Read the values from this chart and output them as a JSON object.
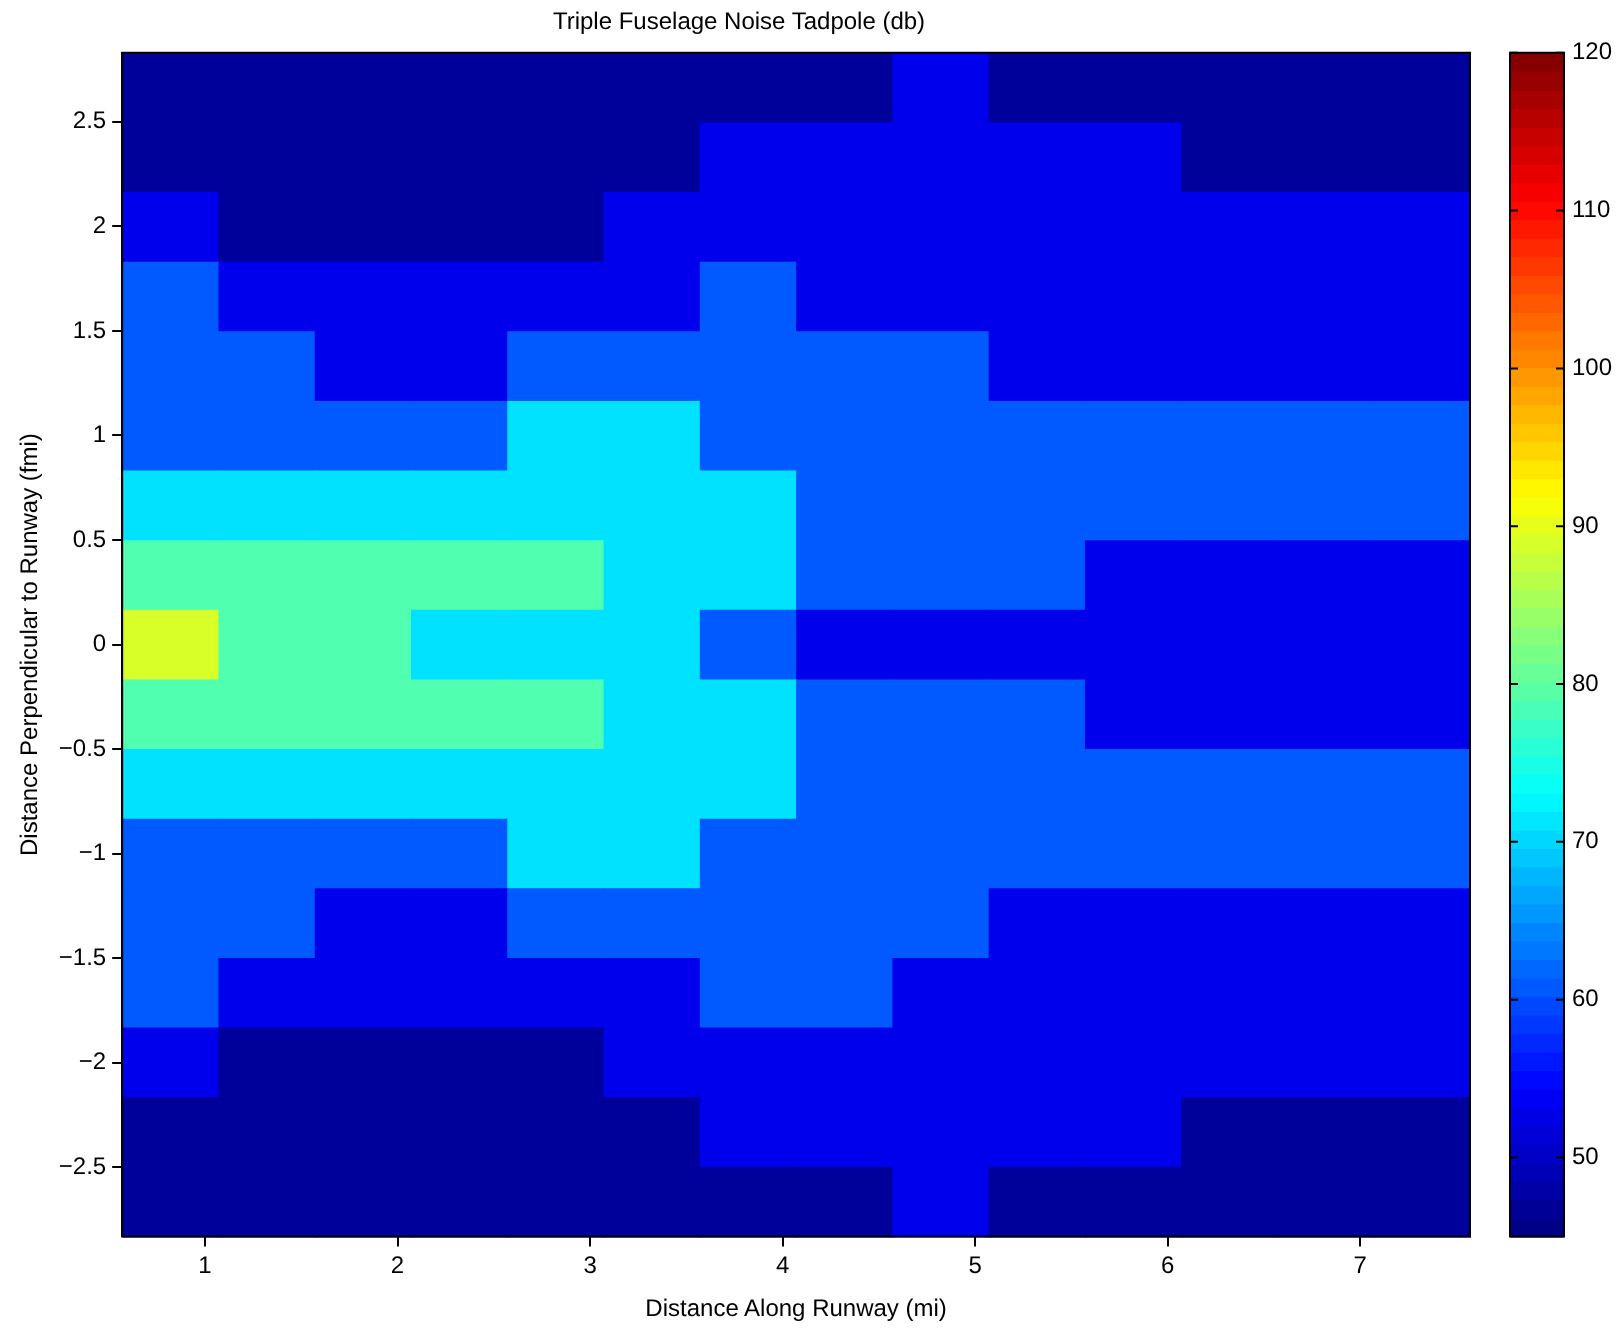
{
  "chart_data": {
    "type": "heatmap",
    "title": "Triple Fuselage Noise Tadpole (db)",
    "xlabel": "Distance Along Runway (mi)",
    "ylabel": "Distance Perpendicular to Runway (fmi)",
    "xlim": [
      0.57,
      7.57
    ],
    "ylim": [
      -2.83,
      2.83
    ],
    "xticks": [
      1,
      2,
      3,
      4,
      5,
      6,
      7
    ],
    "yticks": [
      {
        "value": -2.5,
        "label": "−2.5"
      },
      {
        "value": -2,
        "label": "−2"
      },
      {
        "value": -1.5,
        "label": "−1.5"
      },
      {
        "value": -1,
        "label": "−1"
      },
      {
        "value": -0.5,
        "label": "−0.5"
      },
      0,
      0.5,
      1,
      1.5,
      2,
      2.5
    ],
    "clim": [
      45,
      120
    ],
    "cticks": [
      50,
      60,
      70,
      80,
      90,
      100,
      110,
      120
    ],
    "cells": [
      [
        47,
        47,
        47,
        47,
        47,
        47,
        47,
        47,
        53,
        47,
        47,
        47,
        47,
        47
      ],
      [
        47,
        47,
        47,
        47,
        47,
        47,
        53,
        53,
        53,
        53,
        53,
        47,
        47,
        47
      ],
      [
        53,
        47,
        47,
        47,
        47,
        53,
        53,
        53,
        53,
        53,
        53,
        53,
        53,
        53
      ],
      [
        61,
        53,
        53,
        53,
        53,
        53,
        61,
        53,
        53,
        53,
        53,
        53,
        53,
        53
      ],
      [
        61,
        61,
        53,
        53,
        61,
        61,
        61,
        61,
        61,
        53,
        53,
        53,
        53,
        53
      ],
      [
        61,
        61,
        61,
        61,
        71,
        71,
        61,
        61,
        61,
        61,
        61,
        61,
        61,
        61
      ],
      [
        71,
        71,
        71,
        71,
        71,
        71,
        71,
        61,
        61,
        61,
        61,
        61,
        61,
        61
      ],
      [
        79,
        79,
        79,
        79,
        79,
        71,
        71,
        61,
        61,
        61,
        53,
        53,
        53,
        53
      ],
      [
        89,
        79,
        79,
        71,
        71,
        71,
        61,
        53,
        53,
        53,
        53,
        53,
        53,
        53
      ],
      [
        79,
        79,
        79,
        79,
        79,
        71,
        71,
        61,
        61,
        61,
        53,
        53,
        53,
        53
      ],
      [
        71,
        71,
        71,
        71,
        71,
        71,
        71,
        61,
        61,
        61,
        61,
        61,
        61,
        61
      ],
      [
        61,
        61,
        61,
        61,
        71,
        71,
        61,
        61,
        61,
        61,
        61,
        61,
        61,
        61
      ],
      [
        61,
        61,
        53,
        53,
        61,
        61,
        61,
        61,
        61,
        53,
        53,
        53,
        53,
        53
      ],
      [
        61,
        53,
        53,
        53,
        53,
        53,
        61,
        61,
        53,
        53,
        53,
        53,
        53,
        53
      ],
      [
        53,
        47,
        47,
        47,
        47,
        53,
        53,
        53,
        53,
        53,
        53,
        53,
        53,
        53
      ],
      [
        47,
        47,
        47,
        47,
        47,
        47,
        53,
        53,
        53,
        53,
        53,
        47,
        47,
        47
      ],
      [
        47,
        47,
        47,
        47,
        47,
        47,
        47,
        47,
        53,
        47,
        47,
        47,
        47,
        47
      ]
    ]
  }
}
